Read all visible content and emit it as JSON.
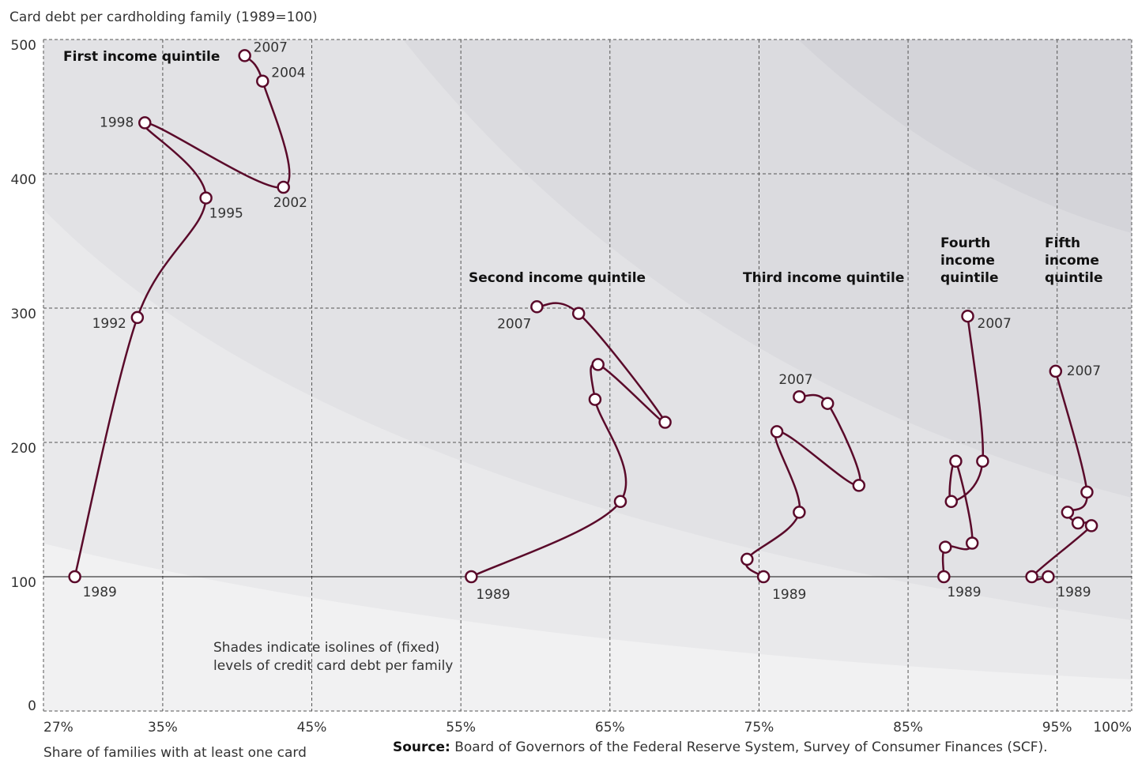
{
  "chart_data": {
    "type": "line",
    "y_title": "Card debt per cardholding family (1989=100)",
    "x_title": "Share of families with at least one card",
    "source_label": "Source:",
    "source": "Board of Governors of the Federal Reserve System, Survey of Consumer Finances (SCF).",
    "note_lines": [
      "Shades indicate isolines of (fixed)",
      "levels of credit card debt per family"
    ],
    "xlim": [
      27,
      100
    ],
    "xticks": [
      {
        "value": 27,
        "label": "27%"
      },
      {
        "value": 35,
        "label": "35%"
      },
      {
        "value": 45,
        "label": "45%"
      },
      {
        "value": 55,
        "label": "55%"
      },
      {
        "value": 65,
        "label": "65%"
      },
      {
        "value": 75,
        "label": "75%"
      },
      {
        "value": 85,
        "label": "85%"
      },
      {
        "value": 95,
        "label": "95%"
      },
      {
        "value": 100,
        "label": "100%"
      }
    ],
    "ylim": [
      0,
      500
    ],
    "yticks": [
      0,
      100,
      200,
      300,
      400,
      500
    ],
    "grid": true,
    "series": [
      {
        "name": "First income quintile",
        "color": "#5a0a2a",
        "x": [
          29.1,
          33.3,
          37.9,
          33.8,
          43.1,
          41.7,
          40.5
        ],
        "values": [
          100,
          293,
          382,
          438,
          390,
          469,
          488
        ],
        "labels": [
          "1989",
          "1992",
          "1995",
          "1998",
          "2002",
          "2004",
          "2007"
        ]
      },
      {
        "name": "Second income quintile",
        "color": "#5a0a2a",
        "x": [
          55.7,
          65.7,
          64.0,
          64.2,
          68.7,
          62.9,
          60.1
        ],
        "values": [
          100,
          156,
          232,
          258,
          215,
          296,
          301
        ],
        "labels": [
          "1989",
          null,
          null,
          null,
          null,
          null,
          "2007"
        ]
      },
      {
        "name": "Third income quintile",
        "color": "#5a0a2a",
        "x": [
          75.3,
          74.2,
          77.7,
          76.2,
          81.7,
          79.6,
          77.7
        ],
        "values": [
          100,
          113,
          148,
          208,
          168,
          229,
          234
        ],
        "labels": [
          "1989",
          null,
          null,
          null,
          null,
          null,
          "2007"
        ]
      },
      {
        "name": "Fourth income quintile",
        "color": "#5a0a2a",
        "x": [
          87.4,
          87.5,
          89.3,
          88.2,
          87.9,
          90.0,
          89.0
        ],
        "values": [
          100,
          122,
          125,
          186,
          156,
          186,
          294
        ],
        "labels": [
          "1989",
          null,
          null,
          null,
          null,
          null,
          "2007"
        ]
      },
      {
        "name": "Fifth income quintile",
        "color": "#5a0a2a",
        "x": [
          94.4,
          93.3,
          97.3,
          96.4,
          95.7,
          97.0,
          94.9
        ],
        "values": [
          100,
          100,
          138,
          140,
          148,
          163,
          253
        ],
        "labels": [
          "1989",
          null,
          null,
          null,
          null,
          null,
          "2007"
        ]
      }
    ]
  }
}
